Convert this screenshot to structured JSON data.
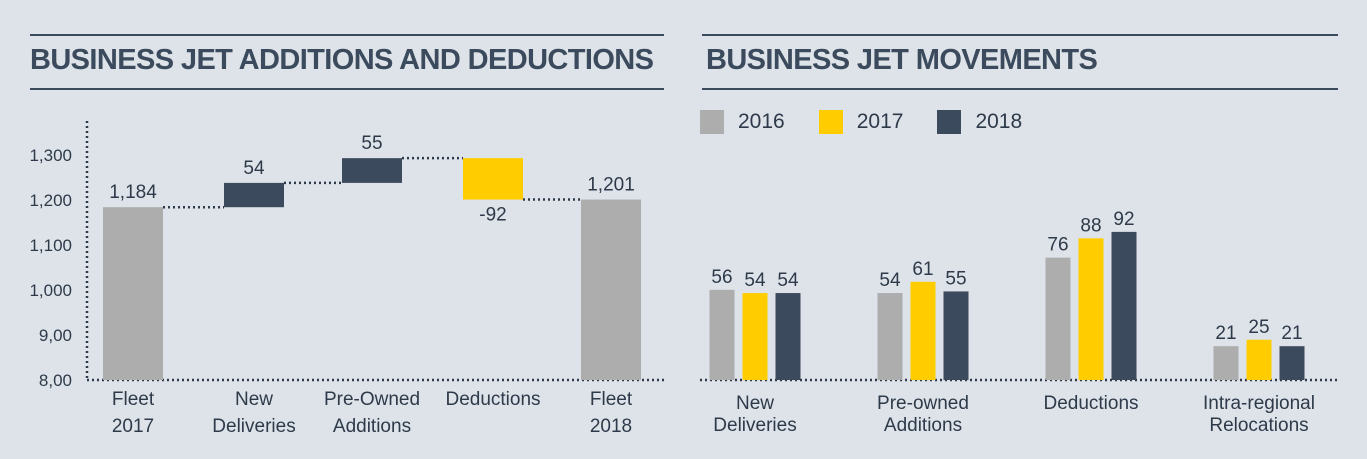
{
  "colors": {
    "gray": "#adadad",
    "yellow": "#ffcc00",
    "navy": "#3b4a5c",
    "text": "#2e3a4a"
  },
  "left": {
    "title": "BUSINESS JET ADDITIONS AND DEDUCTIONS",
    "chart_data": {
      "type": "bar",
      "subtype": "waterfall",
      "title": "BUSINESS JET ADDITIONS AND DEDUCTIONS",
      "categories": [
        "Fleet 2017",
        "New Deliveries",
        "Pre-Owned Additions",
        "Deductions",
        "Fleet 2018"
      ],
      "category_lines": [
        [
          "Fleet",
          "2017"
        ],
        [
          "New",
          "Deliveries"
        ],
        [
          "Pre-Owned",
          "Additions"
        ],
        [
          "Deductions"
        ],
        [
          "Fleet",
          "2018"
        ]
      ],
      "steps": [
        {
          "kind": "total",
          "start": 800,
          "end": 1184,
          "label": "1,184",
          "color": "gray"
        },
        {
          "kind": "increase",
          "start": 1184,
          "end": 1238,
          "label": "54",
          "color": "navy"
        },
        {
          "kind": "increase",
          "start": 1238,
          "end": 1293,
          "label": "55",
          "color": "navy"
        },
        {
          "kind": "decrease",
          "start": 1293,
          "end": 1201,
          "label": "-92",
          "color": "yellow"
        },
        {
          "kind": "total",
          "start": 800,
          "end": 1201,
          "label": "1,201",
          "color": "gray"
        }
      ],
      "yticks": [
        800,
        900,
        1000,
        1100,
        1200,
        1300
      ],
      "ytick_labels": [
        "8,00",
        "9,00",
        "1,000",
        "1,100",
        "1,200",
        "1,300"
      ],
      "ylim": [
        800,
        1340
      ],
      "xlabel": "",
      "ylabel": ""
    }
  },
  "right": {
    "title": "BUSINESS JET MOVEMENTS",
    "legend": [
      {
        "label": "2016",
        "color": "#adadad"
      },
      {
        "label": "2017",
        "color": "#ffcc00"
      },
      {
        "label": "2018",
        "color": "#3b4a5c"
      }
    ],
    "chart_data": {
      "type": "bar",
      "title": "BUSINESS JET MOVEMENTS",
      "categories": [
        "New Deliveries",
        "Pre-owned Additions",
        "Deductions",
        "Intra-regional Relocations"
      ],
      "category_lines": [
        [
          "New",
          "Deliveries"
        ],
        [
          "Pre-owned",
          "Additions"
        ],
        [
          "Deductions"
        ],
        [
          "Intra-regional",
          "Relocations"
        ]
      ],
      "series": [
        {
          "name": "2016",
          "color": "#adadad",
          "values": [
            56,
            54,
            76,
            21
          ]
        },
        {
          "name": "2017",
          "color": "#ffcc00",
          "values": [
            54,
            61,
            88,
            25
          ]
        },
        {
          "name": "2018",
          "color": "#3b4a5c",
          "values": [
            54,
            55,
            92,
            21
          ]
        }
      ],
      "ylim": [
        0,
        140
      ],
      "legend_position": "top-left",
      "grid": false
    }
  }
}
